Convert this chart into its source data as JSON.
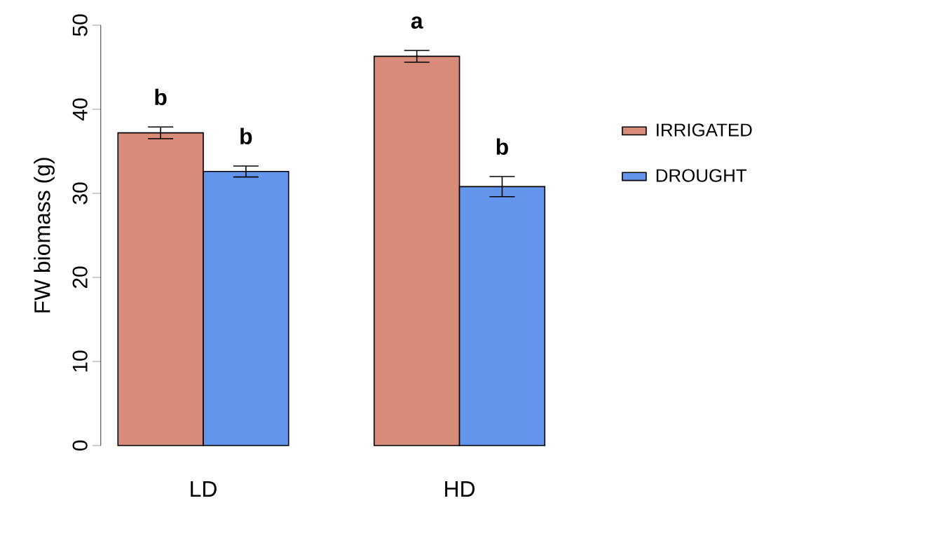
{
  "chart_data": {
    "type": "bar",
    "ylabel": "FW biomass (g)",
    "categories": [
      "LD",
      "HD"
    ],
    "series": [
      {
        "name": "IRRIGATED",
        "color": "#d98b7a",
        "values": [
          37.2,
          46.3
        ],
        "errors": [
          0.7,
          0.7
        ],
        "value_labels": [
          "b",
          "a"
        ]
      },
      {
        "name": "DROUGHT",
        "color": "#6495ed",
        "values": [
          32.6,
          30.8
        ],
        "errors": [
          0.65,
          1.2
        ],
        "value_labels": [
          "b",
          "b"
        ]
      }
    ],
    "ylim": [
      0,
      50
    ],
    "yticks": [
      0,
      10,
      20,
      30,
      40,
      50
    ],
    "legend": "right",
    "grid": false
  }
}
